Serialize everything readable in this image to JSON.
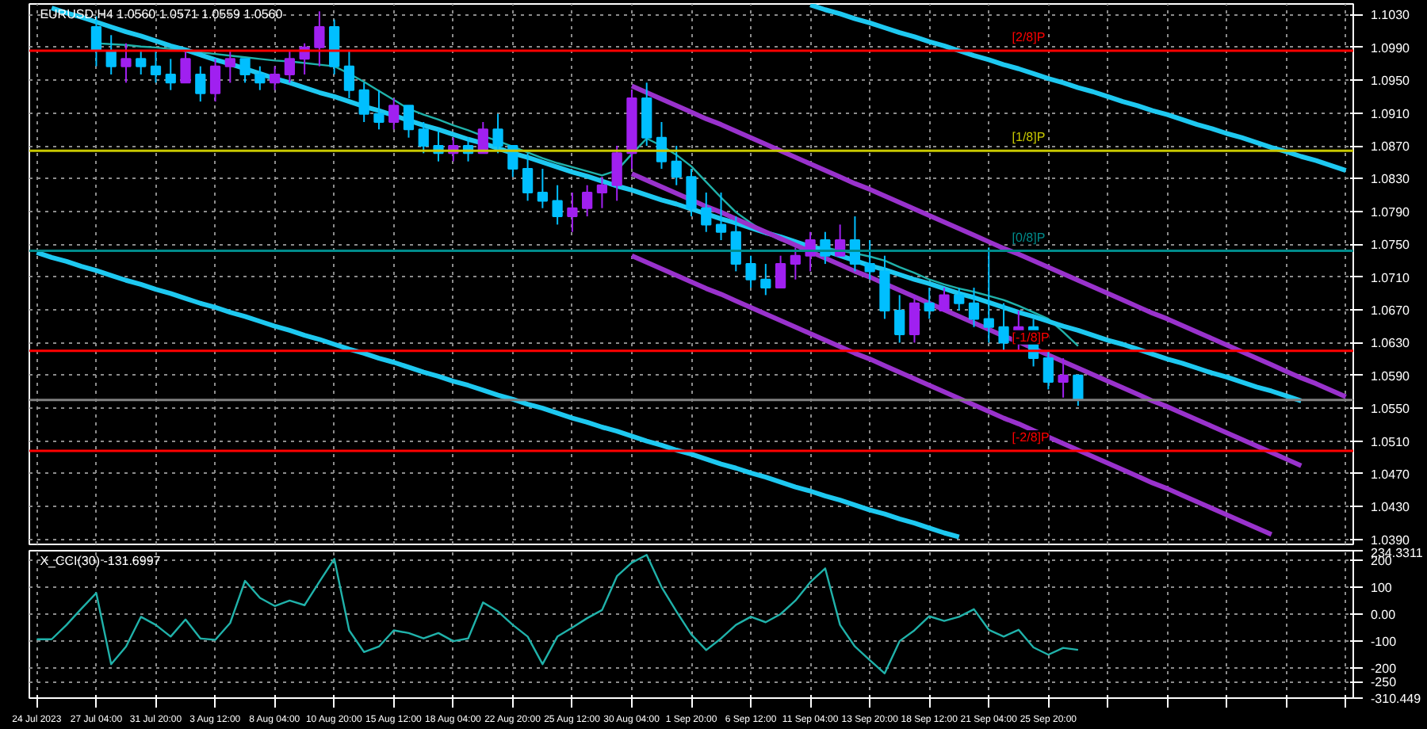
{
  "chart_data": [
    {
      "type": "candlestick",
      "title": "EURUSD,H4  1.0560 1.0571 1.0559 1.0560",
      "categories": [
        null,
        null,
        null,
        null,
        null,
        null,
        null,
        null,
        null,
        null,
        null,
        null,
        null,
        null,
        null,
        null,
        null,
        null,
        null,
        null,
        null,
        null,
        null,
        null,
        null,
        null,
        null,
        null,
        null,
        null,
        null,
        null,
        null,
        null,
        null,
        null,
        null,
        null,
        null,
        null,
        null,
        null,
        null,
        null,
        null,
        null,
        null,
        null,
        null,
        null,
        null,
        null,
        null,
        null,
        null,
        null,
        null,
        null,
        null,
        null,
        null,
        null,
        null,
        null,
        null,
        null,
        null,
        null,
        null,
        null,
        null,
        null,
        null,
        null,
        null,
        null,
        null,
        null,
        null,
        null,
        null,
        null,
        null,
        null,
        null,
        null,
        null,
        null,
        null
      ],
      "ohlc": [
        null,
        null,
        null,
        null,
        [
          1.1015,
          1.1028,
          1.0967,
          1.0986
        ],
        [
          1.0986,
          1.1005,
          1.0957,
          1.0967
        ],
        [
          1.0967,
          1.0995,
          1.0947,
          1.0976
        ],
        [
          1.0976,
          1.0986,
          1.0957,
          1.0967
        ],
        [
          1.0967,
          1.0986,
          1.0947,
          1.0957
        ],
        [
          1.0957,
          1.0976,
          1.0938,
          1.0947
        ],
        [
          1.0947,
          1.0986,
          1.0947,
          1.0976
        ],
        [
          1.0957,
          1.0967,
          1.0924,
          1.0934
        ],
        [
          1.0934,
          1.0976,
          1.0924,
          1.0967
        ],
        [
          1.0967,
          1.0986,
          1.0947,
          1.0976
        ],
        [
          1.0976,
          1.0976,
          1.0947,
          1.0957
        ],
        [
          1.0957,
          1.0967,
          1.0938,
          1.0947
        ],
        [
          1.0947,
          1.0967,
          1.0938,
          1.0957
        ],
        [
          1.0957,
          1.0986,
          1.0947,
          1.0976
        ],
        [
          1.0976,
          1.0995,
          1.0957,
          1.099
        ],
        [
          1.099,
          1.1034,
          1.0967,
          1.1015
        ],
        [
          1.1015,
          1.1024,
          1.0957,
          1.0967
        ],
        [
          1.0967,
          1.0986,
          1.0928,
          1.0938
        ],
        [
          1.0938,
          1.0947,
          1.0899,
          1.0909
        ],
        [
          1.0909,
          1.0938,
          1.089,
          1.0899
        ],
        [
          1.0899,
          1.0928,
          1.089,
          1.0919
        ],
        [
          1.0919,
          1.0919,
          1.088,
          1.089
        ],
        [
          1.089,
          1.0899,
          1.0861,
          1.087
        ],
        [
          1.087,
          1.089,
          1.0851,
          1.0861
        ],
        [
          1.0861,
          1.088,
          1.0851,
          1.087
        ],
        [
          1.087,
          1.088,
          1.0851,
          1.0861
        ],
        [
          1.0861,
          1.0899,
          1.0861,
          1.089
        ],
        [
          1.089,
          1.0909,
          1.0861,
          1.087
        ],
        [
          1.087,
          1.087,
          1.0832,
          1.0842
        ],
        [
          1.0842,
          1.0861,
          1.0803,
          1.0813
        ],
        [
          1.0813,
          1.0842,
          1.0794,
          1.0803
        ],
        [
          1.0803,
          1.0822,
          1.0774,
          1.0784
        ],
        [
          1.0784,
          1.0813,
          1.0765,
          1.0794
        ],
        [
          1.0794,
          1.0822,
          1.0784,
          1.0813
        ],
        [
          1.0813,
          1.0832,
          1.0794,
          1.0822
        ],
        [
          1.0822,
          1.087,
          1.0803,
          1.0861
        ],
        [
          1.0861,
          1.0938,
          1.0842,
          1.0928
        ],
        [
          1.0928,
          1.0947,
          1.087,
          1.088
        ],
        [
          1.088,
          1.0899,
          1.0842,
          1.0851
        ],
        [
          1.0851,
          1.087,
          1.0822,
          1.0832
        ],
        [
          1.0832,
          1.0842,
          1.0784,
          1.0794
        ],
        [
          1.0794,
          1.0813,
          1.0765,
          1.0774
        ],
        [
          1.0774,
          1.0813,
          1.0755,
          1.0765
        ],
        [
          1.0765,
          1.0784,
          1.0717,
          1.0726
        ],
        [
          1.0726,
          1.0736,
          1.0697,
          1.0707
        ],
        [
          1.0707,
          1.0726,
          1.0688,
          1.0697
        ],
        [
          1.0697,
          1.0736,
          1.0697,
          1.0726
        ],
        [
          1.0726,
          1.0746,
          1.0707,
          1.0736
        ],
        [
          1.0736,
          1.0765,
          1.0717,
          1.0755
        ],
        [
          1.0755,
          1.0765,
          1.0726,
          1.0736
        ],
        [
          1.0736,
          1.0774,
          1.0736,
          1.0755
        ],
        [
          1.0755,
          1.0784,
          1.0717,
          1.0726
        ],
        [
          1.0726,
          1.0755,
          1.0707,
          1.0717
        ],
        [
          1.0717,
          1.0736,
          1.0659,
          1.0669
        ],
        [
          1.0669,
          1.0688,
          1.063,
          1.064
        ],
        [
          1.064,
          1.0688,
          1.063,
          1.0678
        ],
        [
          1.0678,
          1.0697,
          1.0659,
          1.0669
        ],
        [
          1.0669,
          1.0697,
          1.0669,
          1.0688
        ],
        [
          1.0688,
          1.0697,
          1.0669,
          1.0678
        ],
        [
          1.0678,
          1.0697,
          1.0649,
          1.0659
        ],
        [
          1.0659,
          1.0746,
          1.063,
          1.0649
        ],
        [
          1.0649,
          1.0678,
          1.0621,
          1.063
        ],
        [
          1.063,
          1.0669,
          1.0621,
          1.0649
        ],
        [
          1.0649,
          1.0659,
          1.0601,
          1.0611
        ],
        [
          1.0611,
          1.0621,
          1.0573,
          1.0582
        ],
        [
          1.0582,
          1.0611,
          1.0563,
          1.059
        ],
        [
          1.059,
          1.059,
          1.0553,
          1.056
        ],
        null,
        null,
        null,
        null,
        null,
        null,
        null,
        null,
        null,
        null,
        null,
        null,
        null,
        null,
        null,
        null,
        null,
        null
      ],
      "colors": [
        null,
        null,
        null,
        null,
        "#00bfff",
        "#00bfff",
        "#a020f0",
        "#00bfff",
        "#00bfff",
        "#00bfff",
        "#a020f0",
        "#00bfff",
        "#a020f0",
        "#a020f0",
        "#00bfff",
        "#00bfff",
        "#a020f0",
        "#a020f0",
        "#a020f0",
        "#a020f0",
        "#00bfff",
        "#00bfff",
        "#00bfff",
        "#00bfff",
        "#a020f0",
        "#00bfff",
        "#00bfff",
        "#00bfff",
        "#a020f0",
        "#00bfff",
        "#a020f0",
        "#00bfff",
        "#00bfff",
        "#00bfff",
        "#00bfff",
        "#00bfff",
        "#a020f0",
        "#a020f0",
        "#a020f0",
        "#a020f0",
        "#a020f0",
        "#00bfff",
        "#00bfff",
        "#00bfff",
        "#00bfff",
        "#00bfff",
        "#00bfff",
        "#00bfff",
        "#00bfff",
        "#00bfff",
        "#a020f0",
        "#a020f0",
        "#a020f0",
        "#00bfff",
        "#a020f0",
        "#00bfff",
        "#00bfff",
        "#00bfff",
        "#00bfff",
        "#a020f0",
        "#00bfff",
        "#a020f0",
        "#00bfff",
        "#00bfff",
        "#00bfff",
        "#00bfff",
        "#a020f0",
        "#00bfff",
        "#00bfff",
        "#a020f0",
        "#00bfff",
        null,
        null,
        null,
        null,
        null,
        null,
        null,
        null,
        null,
        null,
        null,
        null,
        null,
        null,
        null,
        null,
        null,
        null
      ],
      "series": [
        {
          "type": "line",
          "color": "#20b2aa",
          "values": [
            null,
            null,
            null,
            null,
            1.0995,
            1.0994,
            1.0993,
            1.0991,
            1.099,
            1.0988,
            1.0986,
            1.0984,
            1.0982,
            1.098,
            1.0978,
            1.0976,
            1.0974,
            1.0973,
            1.0971,
            1.0969,
            1.0967,
            1.0958,
            1.0948,
            1.0937,
            1.0926,
            1.0915,
            1.0908,
            1.0902,
            1.0895,
            1.0889,
            1.0882,
            1.0876,
            1.0869,
            1.0862,
            1.0855,
            1.0849,
            1.0844,
            1.0839,
            1.0834,
            1.084,
            1.086,
            1.0879,
            1.087,
            1.0859,
            1.0845,
            1.0826,
            1.0807,
            1.0789,
            1.0776,
            1.0764,
            1.0755,
            1.0751,
            1.0748,
            1.0746,
            1.0742,
            1.0739,
            1.0735,
            1.073,
            1.0722,
            1.0715,
            1.0707,
            1.0701,
            1.0696,
            1.0692,
            1.0687,
            1.0682,
            1.0675,
            1.0667,
            1.0659,
            1.0643,
            1.0626,
            null,
            null,
            null,
            null,
            null,
            null,
            null,
            null,
            null,
            null,
            null,
            null,
            null,
            null,
            null,
            null,
            null,
            null
          ]
        },
        {
          "type": "line",
          "color": "#1ec8f0",
          "values": [
            1.074,
            1.0734,
            1.0729,
            1.0723,
            1.0718,
            1.0712,
            1.0706,
            1.0701,
            1.0695,
            1.069,
            1.0684,
            1.0678,
            1.0673,
            1.0667,
            1.0662,
            1.0656,
            1.065,
            1.0645,
            1.0639,
            1.0634,
            1.0628,
            1.0622,
            1.0617,
            1.0611,
            1.0606,
            1.06,
            1.0594,
            1.0589,
            1.0583,
            1.0578,
            1.0572,
            1.0566,
            1.0561,
            1.0555,
            1.055,
            1.0544,
            1.0538,
            1.0533,
            1.0527,
            1.0522,
            1.0516,
            1.051,
            1.0505,
            1.0499,
            1.0494,
            1.0488,
            1.0482,
            1.0477,
            1.0471,
            1.0466,
            1.046,
            1.0454,
            1.0449,
            1.0443,
            1.0438,
            1.0432,
            1.0426,
            1.0421,
            1.0415,
            1.041,
            1.0404,
            1.0398,
            1.0393,
            null,
            null,
            null,
            null,
            null,
            null,
            null,
            null,
            null,
            null,
            null,
            null,
            null,
            null,
            null,
            null,
            null,
            null,
            null,
            null,
            null,
            null,
            null,
            null,
            null,
            null
          ]
        },
        {
          "type": "line",
          "color": "#1ec8f0",
          "values": [
            null,
            1.1038,
            1.1032,
            1.1027,
            1.1021,
            1.1015,
            1.1009,
            1.1004,
            1.0998,
            1.0992,
            1.0987,
            1.0981,
            1.0975,
            1.097,
            1.0964,
            1.0958,
            1.0952,
            1.0947,
            1.0941,
            1.0935,
            1.093,
            1.0924,
            1.0918,
            1.0913,
            1.0907,
            1.0901,
            1.0895,
            1.089,
            1.0884,
            1.0878,
            1.0873,
            1.0867,
            1.0861,
            1.0856,
            1.085,
            1.0844,
            1.0838,
            1.0833,
            1.0827,
            1.0821,
            1.0816,
            1.081,
            1.0804,
            1.0799,
            1.0793,
            1.0787,
            1.0781,
            1.0776,
            1.077,
            1.0764,
            1.0759,
            1.0753,
            1.0747,
            1.0742,
            1.0736,
            1.073,
            1.0724,
            1.0719,
            1.0713,
            1.0707,
            1.0702,
            1.0696,
            1.069,
            1.0685,
            1.0679,
            1.0673,
            1.0667,
            1.0662,
            1.0656,
            1.065,
            1.0645,
            1.0639,
            1.0633,
            1.0628,
            1.0622,
            1.0616,
            1.061,
            1.0605,
            1.0599,
            1.0593,
            1.0588,
            1.0582,
            1.0576,
            1.0571,
            1.0565,
            1.0559,
            null,
            null,
            null
          ]
        },
        {
          "type": "line",
          "color": "#1ec8f0",
          "values": [
            null,
            null,
            null,
            null,
            null,
            null,
            null,
            null,
            null,
            null,
            null,
            null,
            null,
            null,
            null,
            null,
            null,
            null,
            null,
            null,
            null,
            null,
            null,
            null,
            null,
            null,
            null,
            null,
            null,
            null,
            null,
            null,
            null,
            null,
            null,
            null,
            null,
            null,
            null,
            null,
            null,
            null,
            null,
            null,
            null,
            null,
            null,
            null,
            null,
            null,
            null,
            null,
            1.1042,
            1.1036,
            1.1031,
            1.1025,
            1.102,
            1.1014,
            1.1008,
            1.1003,
            1.0997,
            1.0992,
            1.0986,
            1.098,
            1.0975,
            1.0969,
            1.0964,
            1.0958,
            1.0952,
            1.0947,
            1.0941,
            1.0936,
            1.093,
            1.0924,
            1.0919,
            1.0913,
            1.0908,
            1.0902,
            1.0896,
            1.0891,
            1.0885,
            1.088,
            1.0874,
            1.0868,
            1.0863,
            1.0857,
            1.0852,
            1.0846,
            1.084
          ]
        },
        {
          "type": "line",
          "color": "#9932cc",
          "values": [
            null,
            null,
            null,
            null,
            null,
            null,
            null,
            null,
            null,
            null,
            null,
            null,
            null,
            null,
            null,
            null,
            null,
            null,
            null,
            null,
            null,
            null,
            null,
            null,
            null,
            null,
            null,
            null,
            null,
            null,
            null,
            null,
            null,
            null,
            null,
            null,
            null,
            null,
            null,
            null,
            1.0943,
            1.0935,
            1.0927,
            1.0919,
            1.0911,
            1.0903,
            1.0896,
            1.0888,
            1.088,
            1.0872,
            1.0864,
            1.0856,
            1.0848,
            1.084,
            1.0832,
            1.0824,
            1.0817,
            1.0809,
            1.0801,
            1.0793,
            1.0785,
            1.0777,
            1.0769,
            1.0761,
            1.0753,
            1.0745,
            1.0738,
            1.073,
            1.0722,
            1.0714,
            1.0706,
            1.0698,
            1.069,
            1.0682,
            1.0674,
            1.0666,
            1.0659,
            1.0651,
            1.0643,
            1.0635,
            1.0627,
            1.0619,
            1.0611,
            1.0603,
            1.0595,
            1.0587,
            1.058,
            1.0572,
            1.0564
          ]
        },
        {
          "type": "line",
          "color": "#9932cc",
          "values": [
            null,
            null,
            null,
            null,
            null,
            null,
            null,
            null,
            null,
            null,
            null,
            null,
            null,
            null,
            null,
            null,
            null,
            null,
            null,
            null,
            null,
            null,
            null,
            null,
            null,
            null,
            null,
            null,
            null,
            null,
            null,
            null,
            null,
            null,
            null,
            null,
            null,
            null,
            null,
            null,
            1.0836,
            1.0828,
            1.082,
            1.0812,
            1.0804,
            1.0796,
            1.0789,
            1.0781,
            1.0773,
            1.0765,
            1.0757,
            1.0749,
            1.0741,
            1.0733,
            1.0725,
            1.0717,
            1.071,
            1.0702,
            1.0694,
            1.0686,
            1.0678,
            1.067,
            1.0662,
            1.0654,
            1.0646,
            1.0638,
            1.0631,
            1.0623,
            1.0615,
            1.0607,
            1.0599,
            1.0591,
            1.0583,
            1.0575,
            1.0567,
            1.0559,
            1.0552,
            1.0544,
            1.0536,
            1.0528,
            1.052,
            1.0512,
            1.0504,
            1.0496,
            1.0488,
            1.048,
            null,
            null,
            null
          ]
        },
        {
          "type": "line",
          "color": "#9932cc",
          "values": [
            null,
            null,
            null,
            null,
            null,
            null,
            null,
            null,
            null,
            null,
            null,
            null,
            null,
            null,
            null,
            null,
            null,
            null,
            null,
            null,
            null,
            null,
            null,
            null,
            null,
            null,
            null,
            null,
            null,
            null,
            null,
            null,
            null,
            null,
            null,
            null,
            null,
            null,
            null,
            null,
            1.0736,
            1.0728,
            1.072,
            1.0712,
            1.0704,
            1.0696,
            1.0689,
            1.0681,
            1.0673,
            1.0665,
            1.0657,
            1.0649,
            1.0641,
            1.0633,
            1.0625,
            1.0617,
            1.061,
            1.0602,
            1.0594,
            1.0586,
            1.0578,
            1.057,
            1.0562,
            1.0554,
            1.0546,
            1.0538,
            1.0531,
            1.0523,
            1.0515,
            1.0507,
            1.0499,
            1.0491,
            1.0483,
            1.0475,
            1.0467,
            1.0459,
            1.0452,
            1.0444,
            1.0436,
            1.0428,
            1.042,
            1.0412,
            1.0404,
            1.0396,
            null,
            null,
            null,
            null,
            null
          ]
        }
      ],
      "ylim": [
        1.0384,
        1.1043
      ],
      "yticks": [
        {
          "value": 1.039,
          "label": "1.0390"
        },
        {
          "value": 1.043,
          "label": "1.0430"
        },
        {
          "value": 1.047,
          "label": "1.0470"
        },
        {
          "value": 1.051,
          "label": "1.0510"
        },
        {
          "value": 1.055,
          "label": "1.0550"
        },
        {
          "value": 1.059,
          "label": "1.0590"
        },
        {
          "value": 1.063,
          "label": "1.0630"
        },
        {
          "value": 1.067,
          "label": "1.0670"
        },
        {
          "value": 1.071,
          "label": "1.0710"
        },
        {
          "value": 1.075,
          "label": "1.0750"
        },
        {
          "value": 1.079,
          "label": "1.0790"
        },
        {
          "value": 1.083,
          "label": "1.0830"
        },
        {
          "value": 1.087,
          "label": "1.0870"
        },
        {
          "value": 1.091,
          "label": "1.0910"
        },
        {
          "value": 1.095,
          "label": "1.0950"
        },
        {
          "value": 1.099,
          "label": "1.0990"
        },
        {
          "value": 1.103,
          "label": "1.1030"
        }
      ],
      "ref_lines": [
        {
          "axis": "y",
          "value": 1.0986,
          "label": "[2/8]P",
          "color": "#ff0000"
        },
        {
          "axis": "y",
          "value": 1.0864,
          "label": "[1/8]P",
          "color": "#c8c800"
        },
        {
          "axis": "y",
          "value": 1.0742,
          "label": "[0/8]P",
          "color": "#008b8b"
        },
        {
          "axis": "y",
          "value": 1.062,
          "label": "[-1/8]P",
          "color": "#ff0000"
        },
        {
          "axis": "y",
          "value": 1.0498,
          "label": "[-2/8]P",
          "color": "#ff0000"
        },
        {
          "axis": "y",
          "value": 1.056,
          "label": null,
          "color": "#808080"
        }
      ],
      "grid": true,
      "tick_labels": "y"
    },
    {
      "type": "line",
      "title": "X_CCI(30) -131.6997",
      "categories": [
        "24 Jul 2023",
        null,
        null,
        null,
        "27 Jul 04:00",
        null,
        null,
        null,
        "31 Jul 20:00",
        null,
        null,
        null,
        "3 Aug 12:00",
        null,
        null,
        null,
        "8 Aug 04:00",
        null,
        null,
        null,
        "10 Aug 20:00",
        null,
        null,
        null,
        "15 Aug 12:00",
        null,
        null,
        null,
        "18 Aug 04:00",
        null,
        null,
        null,
        "22 Aug 20:00",
        null,
        null,
        null,
        "25 Aug 12:00",
        null,
        null,
        null,
        "30 Aug 04:00",
        null,
        null,
        null,
        "1 Sep 20:00",
        null,
        null,
        null,
        "6 Sep 12:00",
        null,
        null,
        null,
        "11 Sep 04:00",
        null,
        null,
        null,
        "13 Sep 20:00",
        null,
        null,
        null,
        "18 Sep 12:00",
        null,
        null,
        null,
        "21 Sep 04:00",
        null,
        null,
        null,
        "25 Sep 20:00",
        null,
        null,
        null,
        null,
        null,
        null,
        null,
        null,
        null,
        null,
        null,
        null,
        null,
        null,
        null,
        null,
        null,
        null,
        null,
        null
      ],
      "series": [
        {
          "color": "#20b2aa",
          "values": [
            -93,
            -93,
            -40,
            20,
            78,
            -185,
            -120,
            -10,
            -40,
            -83,
            -20,
            -90,
            -95,
            -33,
            123,
            60,
            30,
            50,
            33,
            120,
            204,
            -60,
            -140,
            -120,
            -60,
            -70,
            -90,
            -70,
            -100,
            -90,
            43,
            10,
            -40,
            -83,
            -185,
            -83,
            -50,
            -15,
            15,
            140,
            190,
            219,
            100,
            10,
            -75,
            -133,
            -90,
            -40,
            -10,
            -30,
            0,
            50,
            118,
            169,
            -40,
            -120,
            -170,
            -219,
            -100,
            -60,
            -8,
            -25,
            -10,
            18,
            -58,
            -83,
            -58,
            -123,
            -150,
            -125,
            -132,
            null,
            null,
            null,
            null,
            null,
            null,
            null,
            null,
            null,
            null,
            null,
            null,
            null,
            null,
            null,
            null,
            null,
            null
          ]
        }
      ],
      "ylim": [
        -310.449,
        234.3311
      ],
      "yticks": [
        {
          "value": -310.449,
          "label": "-310.449"
        },
        {
          "value": -250,
          "label": "-250"
        },
        {
          "value": -200,
          "label": "-200"
        },
        {
          "value": -100,
          "label": "-100"
        },
        {
          "value": 0,
          "label": "0.00"
        },
        {
          "value": 100,
          "label": "100"
        },
        {
          "value": 200,
          "label": "200"
        },
        {
          "value": 234.3311,
          "label": "234.3311"
        }
      ],
      "grid": true
    }
  ]
}
